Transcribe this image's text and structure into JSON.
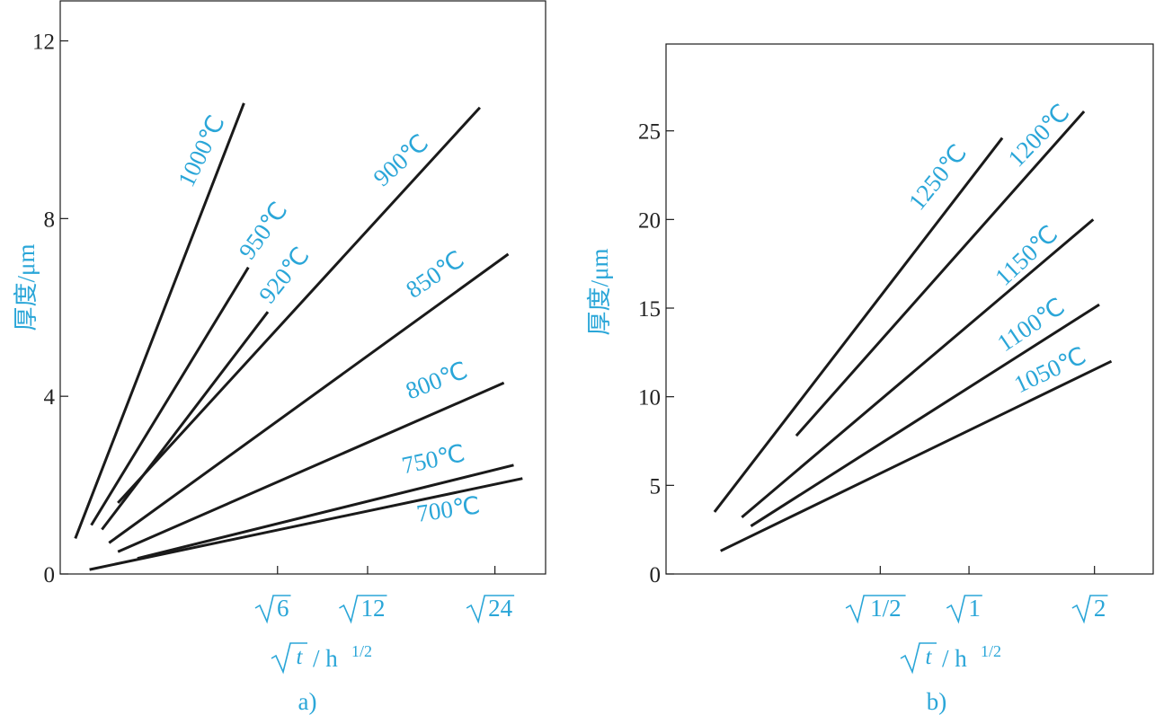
{
  "colors": {
    "label": "#2aa6d8",
    "line": "#1a1a1a",
    "axis": "#1a1a1a",
    "tick_text": "#222222"
  },
  "chart_data": [
    {
      "type": "line",
      "caption": "a)",
      "ylabel": "厚度/μm",
      "xlabel_radical": "t",
      "xlabel_unit": "/ h",
      "xlabel_exp": "1/2",
      "x_scale": "sqrt(t / h)",
      "xlim": [
        0.0,
        5.47
      ],
      "ylim": [
        0,
        12.9
      ],
      "yticks": [
        0,
        4,
        8,
        12
      ],
      "xticks": [
        {
          "value": 2.449,
          "radicand": "6"
        },
        {
          "value": 3.464,
          "radicand": "12"
        },
        {
          "value": 4.899,
          "radicand": "24"
        }
      ],
      "series": [
        {
          "name": "1000℃",
          "x": [
            0.17,
            2.07
          ],
          "y": [
            0.8,
            10.6
          ]
        },
        {
          "name": "950℃",
          "x": [
            0.35,
            2.12
          ],
          "y": [
            1.1,
            6.9
          ]
        },
        {
          "name": "920℃",
          "x": [
            0.47,
            2.34
          ],
          "y": [
            1.0,
            5.9
          ]
        },
        {
          "name": "900℃",
          "x": [
            0.65,
            4.73
          ],
          "y": [
            1.6,
            10.5
          ]
        },
        {
          "name": "850℃",
          "x": [
            0.55,
            5.05
          ],
          "y": [
            0.7,
            7.2
          ]
        },
        {
          "name": "800℃",
          "x": [
            0.65,
            5.0
          ],
          "y": [
            0.5,
            4.3
          ]
        },
        {
          "name": "750℃",
          "x": [
            0.87,
            5.11
          ],
          "y": [
            0.35,
            2.45
          ]
        },
        {
          "name": "700℃",
          "x": [
            0.33,
            5.21
          ],
          "y": [
            0.1,
            2.15
          ]
        }
      ]
    },
    {
      "type": "line",
      "caption": "b)",
      "ylabel": "厚度/μm",
      "xlabel_radical": "t",
      "xlabel_unit": "/ h",
      "xlabel_exp": "1/2",
      "x_scale": "sqrt(t / h)",
      "xlim": [
        0.0,
        1.608
      ],
      "ylim": [
        0,
        29.9
      ],
      "yticks": [
        0,
        5,
        10,
        15,
        20,
        25
      ],
      "xticks": [
        {
          "value": 0.7071,
          "radicand": "1/2"
        },
        {
          "value": 1.0,
          "radicand": "1"
        },
        {
          "value": 1.4142,
          "radicand": "2"
        }
      ],
      "series": [
        {
          "name": "1250℃",
          "x": [
            0.16,
            1.11
          ],
          "y": [
            3.5,
            24.6
          ]
        },
        {
          "name": "1200℃",
          "x": [
            0.43,
            1.38
          ],
          "y": [
            7.8,
            26.1
          ]
        },
        {
          "name": "1150℃",
          "x": [
            0.25,
            1.41
          ],
          "y": [
            3.2,
            20.0
          ]
        },
        {
          "name": "1100℃",
          "x": [
            0.28,
            1.43
          ],
          "y": [
            2.7,
            15.2
          ]
        },
        {
          "name": "1050℃",
          "x": [
            0.18,
            1.47
          ],
          "y": [
            1.3,
            12.0
          ]
        }
      ]
    }
  ]
}
